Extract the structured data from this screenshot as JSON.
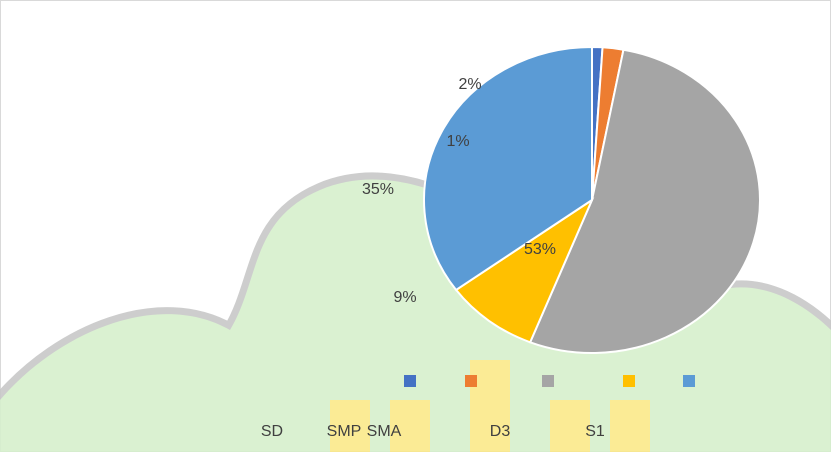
{
  "chart_data": {
    "type": "pie",
    "categories": [
      "SD",
      "SMP",
      "SMA",
      "D3",
      "S1"
    ],
    "values": [
      1,
      2,
      53,
      9,
      35
    ],
    "value_labels": [
      "1%",
      "2%",
      "53%",
      "9%",
      "35%"
    ],
    "colors": [
      "#4472c4",
      "#ed7d31",
      "#a5a5a5",
      "#ffc000",
      "#5b9bd5"
    ],
    "legend": "bottom"
  }
}
